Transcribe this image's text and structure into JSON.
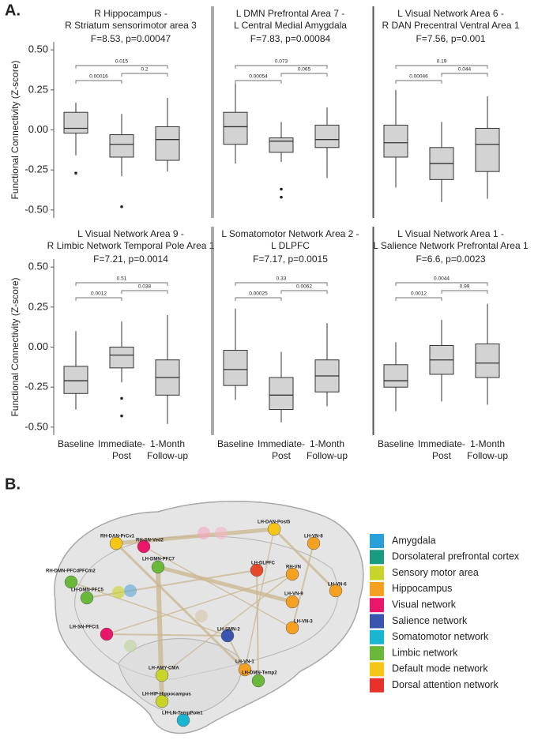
{
  "chart_data": [
    {
      "type": "box",
      "title": [
        "R Hippocampus -",
        "R Striatum sensorimotor area 3"
      ],
      "subtitle": "F=8.53, p=0.00047",
      "boxes": [
        {
          "whislo": -0.16,
          "q1": -0.02,
          "med": 0.01,
          "q3": 0.11,
          "whishi": 0.17,
          "fliers": [
            -0.27
          ]
        },
        {
          "whislo": -0.29,
          "q1": -0.17,
          "med": -0.09,
          "q3": -0.03,
          "whishi": 0.1,
          "fliers": [
            -0.48
          ]
        },
        {
          "whislo": -0.26,
          "q1": -0.19,
          "med": -0.06,
          "q3": 0.02,
          "whishi": 0.2,
          "fliers": []
        }
      ],
      "comparisons": [
        {
          "from": 0,
          "to": 2,
          "p": "0.015"
        },
        {
          "from": 0,
          "to": 1,
          "p": "0.00016"
        },
        {
          "from": 1,
          "to": 2,
          "p": "0.2"
        }
      ]
    },
    {
      "type": "box",
      "title": [
        "L DMN Prefrontal Area 7 -",
        "L Central Medial Amygdala"
      ],
      "subtitle": "F=7.83, p=0.00084",
      "boxes": [
        {
          "whislo": -0.21,
          "q1": -0.09,
          "med": 0.02,
          "q3": 0.11,
          "whishi": 0.29,
          "fliers": []
        },
        {
          "whislo": -0.2,
          "q1": -0.14,
          "med": -0.07,
          "q3": -0.05,
          "whishi": 0.05,
          "fliers": [
            -0.37,
            -0.42
          ]
        },
        {
          "whislo": -0.3,
          "q1": -0.11,
          "med": -0.06,
          "q3": 0.03,
          "whishi": 0.14,
          "fliers": []
        }
      ],
      "comparisons": [
        {
          "from": 0,
          "to": 2,
          "p": "0.073"
        },
        {
          "from": 0,
          "to": 1,
          "p": "0.00054"
        },
        {
          "from": 1,
          "to": 2,
          "p": "0.065"
        }
      ]
    },
    {
      "type": "box",
      "title": [
        "L Visual Network Area 6 -",
        "R DAN Precentral Ventral Area 1"
      ],
      "subtitle": "F=7.56, p=0.001",
      "boxes": [
        {
          "whislo": -0.36,
          "q1": -0.17,
          "med": -0.08,
          "q3": 0.03,
          "whishi": 0.25,
          "fliers": []
        },
        {
          "whislo": -0.45,
          "q1": -0.31,
          "med": -0.21,
          "q3": -0.11,
          "whishi": 0.05,
          "fliers": []
        },
        {
          "whislo": -0.43,
          "q1": -0.26,
          "med": -0.09,
          "q3": 0.01,
          "whishi": 0.21,
          "fliers": []
        }
      ],
      "comparisons": [
        {
          "from": 0,
          "to": 2,
          "p": "0.19"
        },
        {
          "from": 0,
          "to": 1,
          "p": "0.00046"
        },
        {
          "from": 1,
          "to": 2,
          "p": "0.044"
        }
      ]
    },
    {
      "type": "box",
      "title": [
        "L Visual Network Area 9 -",
        "R Limbic Network Temporal Pole Area 1"
      ],
      "subtitle": "F=7.21, p=0.0014",
      "boxes": [
        {
          "whislo": -0.39,
          "q1": -0.29,
          "med": -0.21,
          "q3": -0.12,
          "whishi": 0.1,
          "fliers": []
        },
        {
          "whislo": -0.22,
          "q1": -0.13,
          "med": -0.05,
          "q3": 0.0,
          "whishi": 0.16,
          "fliers": [
            -0.32,
            -0.43
          ]
        },
        {
          "whislo": -0.48,
          "q1": -0.3,
          "med": -0.19,
          "q3": -0.08,
          "whishi": 0.2,
          "fliers": []
        }
      ],
      "comparisons": [
        {
          "from": 0,
          "to": 2,
          "p": "0.51"
        },
        {
          "from": 0,
          "to": 1,
          "p": "0.0012"
        },
        {
          "from": 1,
          "to": 2,
          "p": "0.038"
        }
      ]
    },
    {
      "type": "box",
      "title": [
        "L Somatomotor Network Area 2 -",
        "L DLPFC"
      ],
      "subtitle": "F=7.17, p=0.0015",
      "boxes": [
        {
          "whislo": -0.33,
          "q1": -0.24,
          "med": -0.14,
          "q3": -0.02,
          "whishi": 0.24,
          "fliers": []
        },
        {
          "whislo": -0.47,
          "q1": -0.39,
          "med": -0.3,
          "q3": -0.19,
          "whishi": -0.03,
          "fliers": []
        },
        {
          "whislo": -0.37,
          "q1": -0.28,
          "med": -0.18,
          "q3": -0.08,
          "whishi": 0.15,
          "fliers": []
        }
      ],
      "comparisons": [
        {
          "from": 0,
          "to": 2,
          "p": "0.33"
        },
        {
          "from": 0,
          "to": 1,
          "p": "0.00025"
        },
        {
          "from": 1,
          "to": 2,
          "p": "0.0062"
        }
      ]
    },
    {
      "type": "box",
      "title": [
        "L Visual Network Area 1 -",
        "L Salience Network Prefrontal Area 1"
      ],
      "subtitle": "F=6.6, p=0.0023",
      "boxes": [
        {
          "whislo": -0.4,
          "q1": -0.25,
          "med": -0.21,
          "q3": -0.11,
          "whishi": 0.03,
          "fliers": []
        },
        {
          "whislo": -0.34,
          "q1": -0.17,
          "med": -0.08,
          "q3": 0.01,
          "whishi": 0.17,
          "fliers": []
        },
        {
          "whislo": -0.36,
          "q1": -0.19,
          "med": -0.1,
          "q3": 0.02,
          "whishi": 0.27,
          "fliers": []
        }
      ],
      "comparisons": [
        {
          "from": 0,
          "to": 2,
          "p": "0.0044"
        },
        {
          "from": 0,
          "to": 1,
          "p": "0.0012"
        },
        {
          "from": 1,
          "to": 2,
          "p": "0.99"
        }
      ]
    }
  ],
  "figure": {
    "panel_a_label": "A.",
    "panel_b_label": "B.",
    "y_label": "Functional Connectivity (Z-score)",
    "categories": [
      "Baseline",
      "Immediate-Post",
      "1-Month Follow-up"
    ],
    "ylim": [
      -0.55,
      0.55
    ],
    "yticks": [
      {
        "value": 0.5,
        "label": "0.50"
      },
      {
        "value": 0.25,
        "label": "0.25"
      },
      {
        "value": 0,
        "label": "0.00"
      },
      {
        "value": -0.25,
        "label": "-0.25"
      },
      {
        "value": -0.5,
        "label": "-0.50"
      }
    ],
    "box_color": "#d3d3d3",
    "network": {
      "nodes": [
        {
          "label": "RH-DAN-PrCv1",
          "color": "#f5c518"
        },
        {
          "label": "RH-SN-Ved2",
          "color": "#e8176a"
        },
        {
          "label": "LH-DAN-Post5",
          "color": "#f5c518"
        },
        {
          "label": "RH-DMN-PFCdPFCm2",
          "color": "#6ab83a"
        },
        {
          "label": "LH-DMN-PFC5",
          "color": "#6ab83a"
        },
        {
          "label": "LH-DMN-PFC7",
          "color": "#6ab83a"
        },
        {
          "label": "LH-DLPFC",
          "color": "#e8472a"
        },
        {
          "label": "LH-VN-8",
          "color": "#f5a020"
        },
        {
          "label": "LH-VN-6",
          "color": "#f5a020"
        },
        {
          "label": "RH-VN",
          "color": "#f5a020"
        },
        {
          "label": "LH-VN-9",
          "color": "#f5a020"
        },
        {
          "label": "LH-SN-PFCl1",
          "color": "#e8176a"
        },
        {
          "label": "LH-SMN-2",
          "color": "#3a55b0"
        },
        {
          "label": "LH-VN-3",
          "color": "#f5a020"
        },
        {
          "label": "LH-VN-1",
          "color": "#f5a020"
        },
        {
          "label": "LH-DMN-Temp2",
          "color": "#6ab83a"
        },
        {
          "label": "LH-AMY-CMA",
          "color": "#c8d42a"
        },
        {
          "label": "LH-HIP-Hippocampus",
          "color": "#c8d42a"
        },
        {
          "label": "LH-LN-TempPole1",
          "color": "#1ab5d0"
        }
      ],
      "legend": [
        {
          "label": "Amygdala",
          "color": "#2a9fd8"
        },
        {
          "label": "Dorsolateral prefrontal cortex",
          "color": "#1a9a80"
        },
        {
          "label": "Sensory motor area",
          "color": "#c8d42a"
        },
        {
          "label": "Hippocampus",
          "color": "#f5a020"
        },
        {
          "label": "Visual network",
          "color": "#e8176a"
        },
        {
          "label": "Salience network",
          "color": "#3a55b0"
        },
        {
          "label": "Somatomotor network",
          "color": "#1ab5d0"
        },
        {
          "label": "Limbic network",
          "color": "#6ab83a"
        },
        {
          "label": "Default mode network",
          "color": "#f5c518"
        },
        {
          "label": "Dorsal attention network",
          "color": "#e8312a"
        }
      ]
    }
  }
}
